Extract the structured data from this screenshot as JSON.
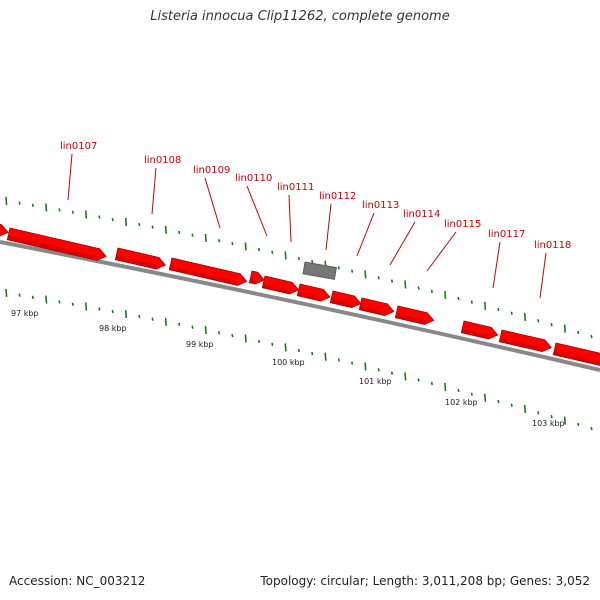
{
  "title": "Listeria innocua Clip11262, complete genome",
  "footer": {
    "accession": "Accession: NC_003212",
    "summary": "Topology: circular; Length: 3,011,208 bp; Genes: 3,052"
  },
  "colors": {
    "gene": "#ff0000",
    "gene_shadow": "#aa0000",
    "rna": "#777777",
    "backbone": "#888888",
    "ticks": "#1a7a1a",
    "labels": "#cc0000"
  },
  "genes": [
    {
      "label": "lin0107"
    },
    {
      "label": "lin0108"
    },
    {
      "label": "lin0109"
    },
    {
      "label": "lin0110"
    },
    {
      "label": "lin0111"
    },
    {
      "label": "lin0112"
    },
    {
      "label": "lin0113"
    },
    {
      "label": "lin0114"
    },
    {
      "label": "lin0115"
    },
    {
      "label": "lin0117"
    },
    {
      "label": "lin0118"
    }
  ],
  "kbp_labels": [
    "97 kbp",
    "98 kbp",
    "99 kbp",
    "100 kbp",
    "101 kbp",
    "102 kbp",
    "103 kbp"
  ]
}
